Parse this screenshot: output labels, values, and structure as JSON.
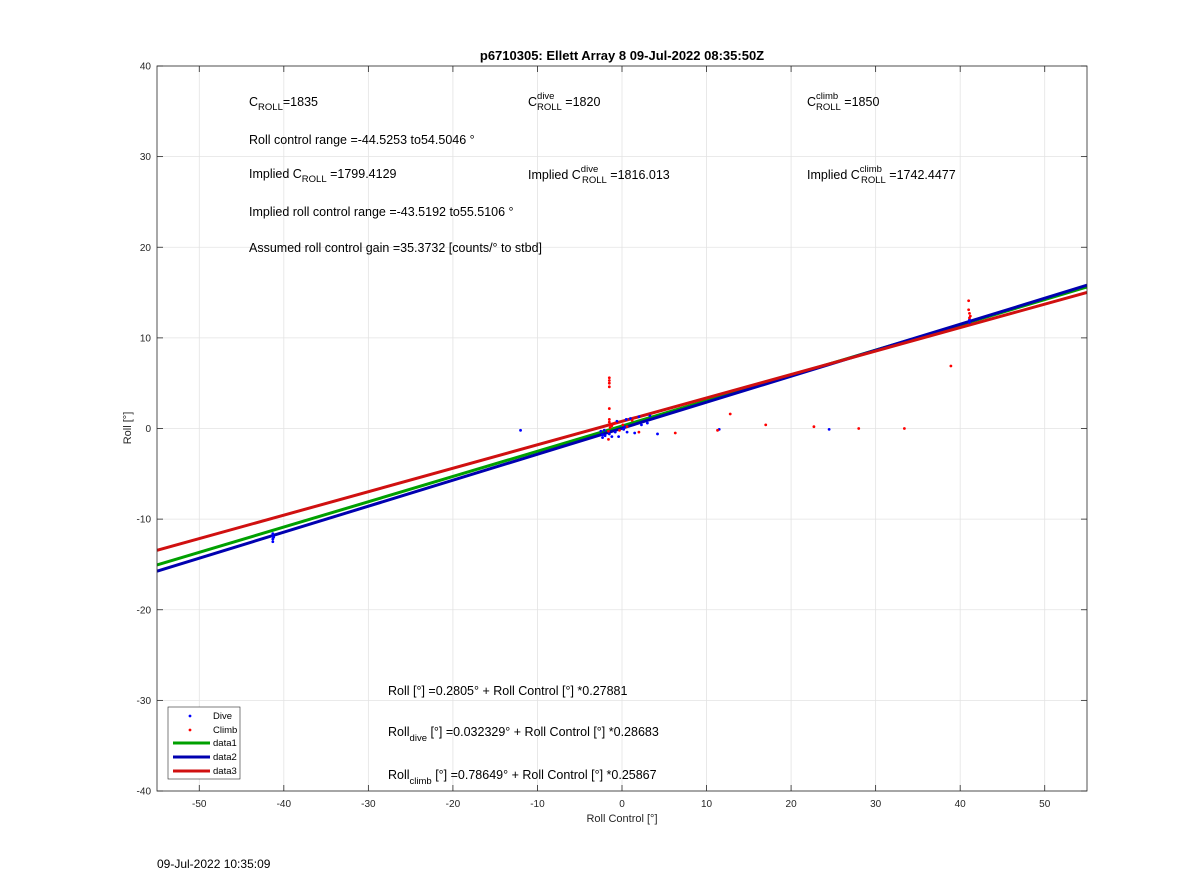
{
  "chart_data": {
    "type": "scatter",
    "title": "p6710305: Ellett Array 8 09-Jul-2022 08:35:50Z",
    "xlabel": "Roll Control [°]",
    "ylabel": "Roll [°]",
    "xlim": [
      -55,
      55
    ],
    "ylim": [
      -40,
      40
    ],
    "xticks": [
      -50,
      -40,
      -30,
      -20,
      -10,
      0,
      10,
      20,
      30,
      40,
      50
    ],
    "yticks": [
      -40,
      -30,
      -20,
      -10,
      0,
      10,
      20,
      30,
      40
    ],
    "grid": true,
    "legend_position": "bottom-left",
    "series": [
      {
        "name": "Dive",
        "kind": "points",
        "color": "#0000ff",
        "points": [
          [
            -41.3,
            -11.6
          ],
          [
            -41.3,
            -11.9
          ],
          [
            -41.3,
            -12.2
          ],
          [
            -41.3,
            -12.5
          ],
          [
            -41.2,
            -12.0
          ],
          [
            -12,
            -0.2
          ],
          [
            -2.5,
            -0.3
          ],
          [
            -2.3,
            -0.7
          ],
          [
            -2.3,
            -1.0
          ],
          [
            -2.1,
            -0.2
          ],
          [
            -2.0,
            -0.8
          ],
          [
            -1.5,
            -0.6
          ],
          [
            -1.2,
            -0.9
          ],
          [
            -0.8,
            -0.4
          ],
          [
            -0.6,
            0.8
          ],
          [
            -0.4,
            -0.9
          ],
          [
            0.2,
            -0.1
          ],
          [
            0.3,
            0.2
          ],
          [
            0.5,
            1.0
          ],
          [
            0.6,
            -0.4
          ],
          [
            1.0,
            1.1
          ],
          [
            1.5,
            -0.5
          ],
          [
            2.0,
            1.3
          ],
          [
            2.3,
            0.4
          ],
          [
            3.0,
            0.6
          ],
          [
            3.3,
            1.4
          ],
          [
            4.2,
            -0.6
          ],
          [
            11.5,
            -0.1
          ],
          [
            24.5,
            -0.1
          ],
          [
            41.1,
            11.7
          ],
          [
            41.1,
            12.0
          ]
        ]
      },
      {
        "name": "Climb",
        "kind": "points",
        "color": "#ff0000",
        "points": [
          [
            -1.5,
            5.6
          ],
          [
            -1.5,
            5.3
          ],
          [
            -1.5,
            5.0
          ],
          [
            -1.5,
            4.6
          ],
          [
            -1.5,
            2.2
          ],
          [
            -1.5,
            1.0
          ],
          [
            -1.5,
            0.7
          ],
          [
            -1.4,
            0.4
          ],
          [
            -1.4,
            0.1
          ],
          [
            -1.6,
            -0.3
          ],
          [
            -1.6,
            -1.2
          ],
          [
            -1.2,
            0.3
          ],
          [
            -0.8,
            0.6
          ],
          [
            -0.3,
            -0.2
          ],
          [
            0.1,
            0.4
          ],
          [
            0.6,
            0.2
          ],
          [
            1.2,
            0.9
          ],
          [
            2.0,
            -0.4
          ],
          [
            6.3,
            -0.5
          ],
          [
            11.3,
            -0.2
          ],
          [
            12.8,
            1.6
          ],
          [
            17.0,
            0.4
          ],
          [
            22.7,
            0.2
          ],
          [
            28.0,
            0.0
          ],
          [
            33.4,
            0.0
          ],
          [
            38.9,
            6.9
          ],
          [
            41.0,
            14.1
          ],
          [
            41.0,
            13.1
          ],
          [
            41.1,
            12.7
          ],
          [
            41.2,
            12.4
          ],
          [
            41.1,
            12.2
          ]
        ]
      },
      {
        "name": "data1",
        "kind": "line",
        "color": "#00a000",
        "intercept": 0.2805,
        "slope": 0.27881
      },
      {
        "name": "data2",
        "kind": "line",
        "color": "#0000b0",
        "intercept": 0.032329,
        "slope": 0.28683
      },
      {
        "name": "data3",
        "kind": "line",
        "color": "#d01010",
        "intercept": 0.78649,
        "slope": 0.25867
      }
    ]
  },
  "annotations": {
    "c_roll": {
      "base": "C",
      "sub": "ROLL",
      "value": "=1835"
    },
    "c_roll_dive": {
      "base": "C",
      "sup": "dive",
      "sub": "ROLL",
      "value": " =1820"
    },
    "c_roll_climb": {
      "base": "C",
      "sup": "climb",
      "sub": "ROLL",
      "value": " =1850"
    },
    "roll_control_range": "Roll control range =-44.5253 to54.5046 °",
    "implied_c_roll": {
      "prefix": "Implied C",
      "sub": "ROLL",
      "value": " =1799.4129"
    },
    "implied_c_roll_dive": {
      "prefix": "Implied C",
      "sup": "dive",
      "sub": "ROLL",
      "value": " =1816.013"
    },
    "implied_c_roll_climb": {
      "prefix": "Implied C",
      "sup": "climb",
      "sub": "ROLL",
      "value": " =1742.4477"
    },
    "implied_roll_control_range": "Implied roll control range =-43.5192 to55.5106 °",
    "assumed_gain": "Assumed roll control gain =35.3732 [counts/° to stbd]",
    "fit_all": {
      "prefix": "Roll",
      "sub": "",
      "text": " [°] =0.2805° + Roll Control [°] *0.27881"
    },
    "fit_dive": {
      "prefix": "Roll",
      "sub": "dive",
      "text": " [°] =0.032329° + Roll Control [°] *0.28683"
    },
    "fit_climb": {
      "prefix": "Roll",
      "sub": "climb",
      "text": " [°] =0.78649° + Roll Control [°] *0.25867"
    }
  },
  "footer_timestamp": "09-Jul-2022 10:35:09"
}
